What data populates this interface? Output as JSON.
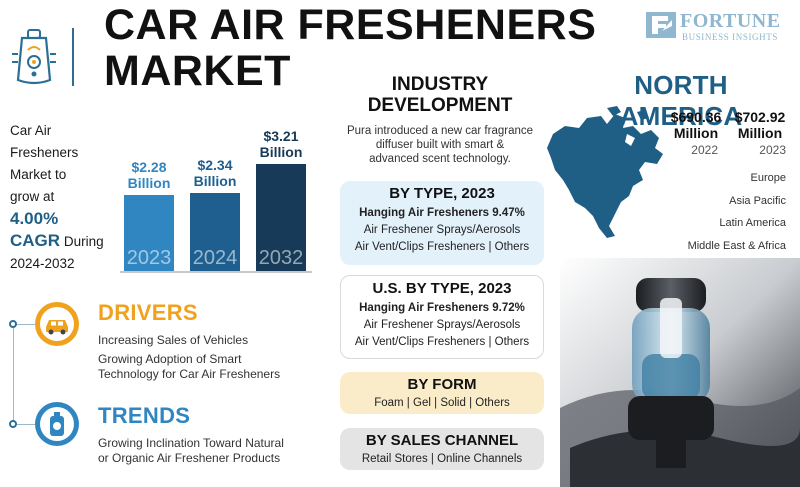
{
  "header": {
    "title_line1": "CAR AIR FRESHENERS",
    "title_line2": "MARKET",
    "logo_name": "FORTUNE",
    "logo_sub": "BUSINESS INSIGHTS"
  },
  "growth": {
    "line1": "Car Air",
    "line2": "Fresheners",
    "line3": "Market to",
    "line4": "grow at",
    "cagr_value": "4.00%",
    "cagr_label": "CAGR",
    "during": "During",
    "period": "2024-2032"
  },
  "market_bars": [
    {
      "year": "2023",
      "value": "$2.28",
      "unit": "Billion",
      "amount": 2.28,
      "color": "#2f86c1"
    },
    {
      "year": "2024",
      "value": "$2.34",
      "unit": "Billion",
      "amount": 2.34,
      "color": "#1e5f90"
    },
    {
      "year": "2032",
      "value": "$3.21",
      "unit": "Billion",
      "amount": 3.21,
      "color": "#163a57"
    }
  ],
  "drivers": {
    "heading": "DRIVERS",
    "item1": "Increasing Sales of Vehicles",
    "item2_line1": "Growing Adoption of Smart",
    "item2_line2": "Technology for Car Air Fresheners"
  },
  "trends": {
    "heading": "TRENDS",
    "item1_line1": "Growing Inclination Toward Natural",
    "item1_line2": "or Organic Air Freshener Products"
  },
  "industry": {
    "title_line1": "INDUSTRY",
    "title_line2": "DEVELOPMENT",
    "text_line1": "Pura introduced a new car fragrance",
    "text_line2": "diffuser built with smart &",
    "text_line3": "advanced scent technology."
  },
  "by_type": {
    "title": "BY TYPE, 2023",
    "line1": "Hanging Air Fresheners 9.47%",
    "line2": "Air Freshener Sprays/Aerosols",
    "line3a": "Air Vent/Clips Fresheners",
    "sep": "|",
    "line3b": "Others"
  },
  "us_by_type": {
    "title": "U.S. BY TYPE, 2023",
    "line1": "Hanging Air Fresheners 9.72%",
    "line2": "Air Freshener Sprays/Aerosols",
    "line3a": "Air Vent/Clips Fresheners",
    "sep": "|",
    "line3b": "Others"
  },
  "by_form": {
    "title": "BY FORM",
    "items": [
      "Foam",
      "Gel",
      "Solid",
      "Others"
    ],
    "sep": "|"
  },
  "by_channel": {
    "title": "BY SALES CHANNEL",
    "items": [
      "Retail Stores",
      "Online Channels"
    ],
    "sep": "|"
  },
  "north_america": {
    "title": "NORTH AMERICA",
    "value_2022": "$690.36",
    "unit": "Million",
    "year_2022": "2022",
    "value_2023": "$702.92",
    "year_2023": "2023",
    "regions": [
      "Europe",
      "Asia Pacific",
      "Latin America",
      "Middle East & Africa"
    ]
  },
  "colors": {
    "accent_blue": "#1f5f86",
    "drivers_orange": "#f0a21e",
    "trends_blue": "#2f86c1",
    "card_blue": "#e3f1fb",
    "card_white": "#ffffff",
    "card_yellow": "#fbecc9",
    "card_gray": "#e4e4e4"
  }
}
